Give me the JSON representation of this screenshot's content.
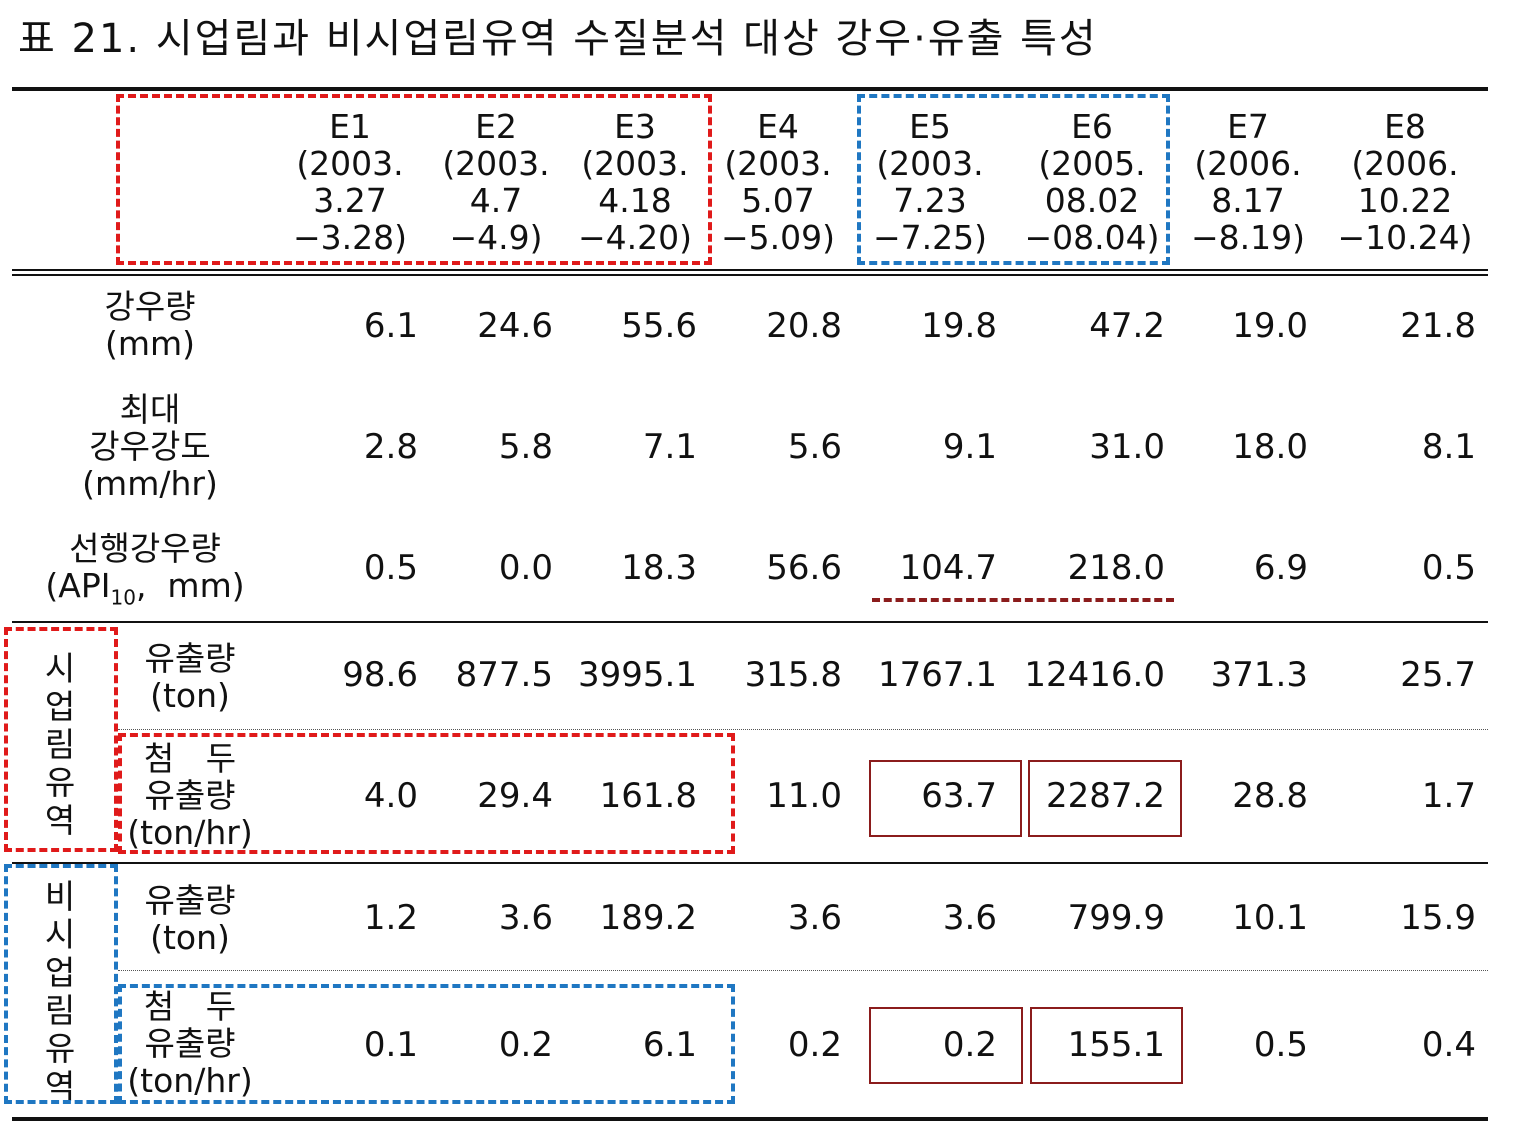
{
  "title": "표 21. 시업림과 비시업림유역 수질분석 대상 강우·유출 특성",
  "columns": [
    [
      "E1",
      "(2003.",
      "3.27",
      "−3.28)"
    ],
    [
      "E2",
      "(2003.",
      "4.7",
      "−4.9)"
    ],
    [
      "E3",
      "(2003.",
      "4.18",
      "−4.20)"
    ],
    [
      "E4",
      "(2003.",
      "5.07",
      "−5.09)"
    ],
    [
      "E5",
      "(2003.",
      "7.23",
      "−7.25)"
    ],
    [
      "E6",
      "(2005.",
      "08.02",
      "−08.04)"
    ],
    [
      "E7",
      "(2006.",
      "8.17",
      "−8.19)"
    ],
    [
      "E8",
      "(2006.",
      "10.22",
      "−10.24)"
    ]
  ],
  "groups": {
    "treated": [
      "시",
      "업",
      "림",
      "유",
      "역"
    ],
    "untreated": [
      "비",
      "시",
      "업",
      "림",
      "유",
      "역"
    ]
  },
  "rows": [
    {
      "label": [
        "강우량",
        "(mm)"
      ],
      "values": [
        "6.1",
        "24.6",
        "55.6",
        "20.8",
        "19.8",
        "47.2",
        "19.0",
        "21.8"
      ]
    },
    {
      "label": [
        "최대",
        "강우강도",
        "(mm/hr)"
      ],
      "values": [
        "2.8",
        "5.8",
        "7.1",
        "5.6",
        "9.1",
        "31.0",
        "18.0",
        "8.1"
      ]
    },
    {
      "label": [
        "선행강우량"
      ],
      "api_prefix": "(API",
      "api_sub": "10",
      "api_suffix": ",  mm)",
      "values": [
        "0.5",
        "0.0",
        "18.3",
        "56.6",
        "104.7",
        "218.0",
        "6.9",
        "0.5"
      ]
    },
    {
      "label": [
        "유출량",
        "(ton)"
      ],
      "values": [
        "98.6",
        "877.5",
        "3995.1",
        "315.8",
        "1767.1",
        "12416.0",
        "371.3",
        "25.7"
      ]
    },
    {
      "label": [
        "첨   두",
        "유출량",
        "(ton/hr)"
      ],
      "values": [
        "4.0",
        "29.4",
        "161.8",
        "11.0",
        "63.7",
        "2287.2",
        "28.8",
        "1.7"
      ]
    },
    {
      "label": [
        "유출량",
        "(ton)"
      ],
      "values": [
        "1.2",
        "3.6",
        "189.2",
        "3.6",
        "3.6",
        "799.9",
        "10.1",
        "15.9"
      ]
    },
    {
      "label": [
        "첨   두",
        "유출량",
        "(ton/hr)"
      ],
      "values": [
        "0.1",
        "0.2",
        "6.1",
        "0.2",
        "0.2",
        "155.1",
        "0.5",
        "0.4"
      ]
    }
  ],
  "colors": {
    "highlight_red": "#e01a1a",
    "highlight_blue": "#1f77c2",
    "box_dark_red": "#8b1c1c"
  }
}
